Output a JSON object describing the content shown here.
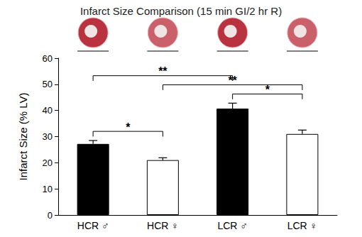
{
  "chart_data": {
    "type": "bar",
    "title": "Infarct Size Comparison (15 min GI/2 hr R)",
    "y_label": "Infarct Size (% LV)",
    "categories": [
      "HCR ♂",
      "HCR ♀",
      "LCR ♂",
      "LCR ♀"
    ],
    "values": [
      27.2,
      21,
      40.7,
      31
    ],
    "errors": [
      1.3,
      0.9,
      2.1,
      1.5
    ],
    "colors": [
      "#000000",
      "#ffffff",
      "#000000",
      "#ffffff"
    ],
    "ylim": [
      0,
      60
    ],
    "yticks": [
      0,
      10,
      20,
      30,
      40,
      50,
      60
    ],
    "grid": false,
    "comparisons": [
      {
        "from": "HCR ♂",
        "to": "HCR ♀",
        "label": "*"
      },
      {
        "from": "LCR ♂",
        "to": "LCR ♀",
        "label": "*"
      },
      {
        "from": "HCR ♀",
        "to": "LCR ♀",
        "label": "**"
      },
      {
        "from": "HCR ♂",
        "to": "LCR ♂",
        "label": "**"
      }
    ]
  }
}
